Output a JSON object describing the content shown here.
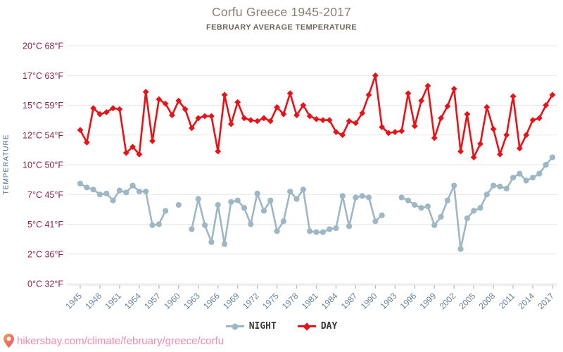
{
  "chart_data": {
    "type": "line",
    "title": "Corfu Greece 1945-2017",
    "subtitle": "FEBRUARY AVERAGE TEMPERATURE",
    "ylabel": "TEMPERATURE",
    "grid": "horizontal",
    "legend_position": "bottom",
    "x_range": [
      1945,
      2017
    ],
    "x_tick_years": [
      1945,
      1948,
      1951,
      1954,
      1957,
      1960,
      1963,
      1966,
      1969,
      1972,
      1975,
      1978,
      1981,
      1984,
      1987,
      1990,
      1993,
      1996,
      1999,
      2002,
      2005,
      2008,
      2011,
      2014,
      2017
    ],
    "y_ticks": [
      {
        "value": 20,
        "label": "20°C 68°F"
      },
      {
        "value": 17,
        "label": "17°C 63°F"
      },
      {
        "value": 15,
        "label": "15°C 59°F"
      },
      {
        "value": 12,
        "label": "12°C 54°F"
      },
      {
        "value": 10,
        "label": "10°C 50°F"
      },
      {
        "value": 7,
        "label": "7°C 45°F"
      },
      {
        "value": 5,
        "label": "5°C 41°F"
      },
      {
        "value": 2,
        "label": "2°C 36°F"
      },
      {
        "value": 0,
        "label": "0°C 32°F"
      }
    ],
    "years": [
      1945,
      1946,
      1947,
      1948,
      1949,
      1950,
      1951,
      1952,
      1953,
      1954,
      1955,
      1956,
      1957,
      1958,
      1959,
      1960,
      1961,
      1962,
      1963,
      1964,
      1965,
      1966,
      1967,
      1968,
      1969,
      1970,
      1971,
      1972,
      1973,
      1974,
      1975,
      1976,
      1977,
      1978,
      1979,
      1980,
      1981,
      1982,
      1983,
      1984,
      1985,
      1986,
      1987,
      1988,
      1989,
      1990,
      1991,
      1992,
      1993,
      1994,
      1995,
      1996,
      1997,
      1998,
      1999,
      2000,
      2001,
      2002,
      2003,
      2004,
      2005,
      2006,
      2007,
      2008,
      2009,
      2010,
      2011,
      2012,
      2013,
      2014,
      2015,
      2016,
      2017
    ],
    "series": [
      {
        "name": "NIGHT",
        "color": "#9db7c5",
        "marker": "circle",
        "values": [
          8.1,
          7.7,
          7.5,
          7.0,
          7.1,
          6.6,
          7.4,
          7.2,
          7.9,
          7.3,
          7.3,
          4.9,
          5.0,
          5.9,
          null,
          6.3,
          null,
          4.5,
          6.7,
          4.9,
          3.2,
          6.3,
          3.0,
          6.5,
          6.6,
          6.1,
          5.0,
          7.1,
          5.9,
          6.6,
          4.3,
          5.2,
          7.3,
          6.7,
          7.5,
          4.3,
          4.2,
          4.2,
          4.5,
          4.6,
          6.9,
          4.8,
          6.8,
          6.9,
          6.8,
          5.2,
          5.6,
          null,
          null,
          6.8,
          6.6,
          6.3,
          6.1,
          6.2,
          4.9,
          5.5,
          6.6,
          7.9,
          2.5,
          5.4,
          5.9,
          6.1,
          7.0,
          7.9,
          7.8,
          7.6,
          8.7,
          9.1,
          8.4,
          8.7,
          9.1,
          10.0,
          10.5
        ]
      },
      {
        "name": "DAY",
        "color": "#ea1117",
        "marker": "diamond",
        "values": [
          12.5,
          11.5,
          14.7,
          14.1,
          14.3,
          14.7,
          14.6,
          10.8,
          11.2,
          10.7,
          15.9,
          11.6,
          15.4,
          15.1,
          14.0,
          15.3,
          14.6,
          12.7,
          13.7,
          13.9,
          13.9,
          10.9,
          15.7,
          13.1,
          15.2,
          13.7,
          13.5,
          13.4,
          13.7,
          13.4,
          14.8,
          14.1,
          15.8,
          14.0,
          15.0,
          13.9,
          13.6,
          13.5,
          13.5,
          12.3,
          12.0,
          13.4,
          13.2,
          14.2,
          15.7,
          17.0,
          12.8,
          12.2,
          12.3,
          12.4,
          15.8,
          12.9,
          15.3,
          16.3,
          11.8,
          13.7,
          14.9,
          16.1,
          10.9,
          14.1,
          10.5,
          11.4,
          14.8,
          12.6,
          10.7,
          12.0,
          15.6,
          11.1,
          12.0,
          13.5,
          13.7,
          15.0,
          15.7
        ]
      }
    ]
  },
  "colors": {
    "grid": "#e7e7e7",
    "axis_line": "#d9dde1",
    "axis_tick": "#b3c3d2",
    "y_tick_label": "#8e2345",
    "x_tick_label": "#64819c",
    "y_axis_title": "#47647f",
    "title": "#8b8073",
    "subtitle": "#6e655c",
    "legend_text": "#3a3a3a",
    "footer_link": "#f687ae",
    "pin_top": "#f29a52",
    "pin_bottom": "#ee4f6e"
  },
  "legend": {
    "night_label": "NIGHT",
    "day_label": "DAY"
  },
  "footer": {
    "url": "hikersbay.com/climate/february/greece/corfu"
  }
}
